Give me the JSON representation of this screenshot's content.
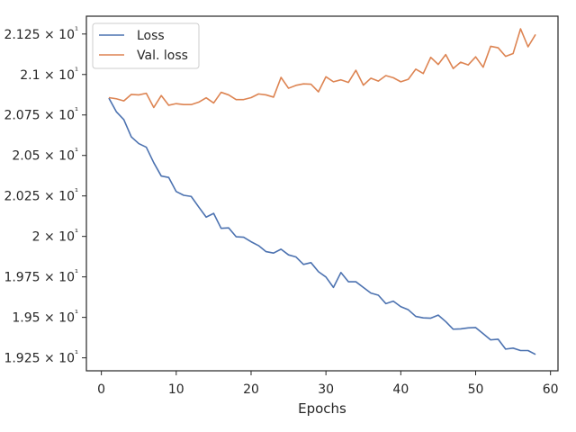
{
  "chart_data": {
    "type": "line",
    "title": "",
    "xlabel": "Epochs",
    "ylabel": "",
    "xlim": [
      -2.0,
      61.0
    ],
    "ylim": [
      19.17,
      21.36
    ],
    "xticks": [
      0,
      10,
      20,
      30,
      40,
      50,
      60
    ],
    "yticks": [
      19.25,
      19.5,
      19.75,
      20.0,
      20.25,
      20.5,
      20.75,
      21.0,
      21.25
    ],
    "ytick_labels": [
      "1.925 × 10¹",
      "1.95 × 10¹",
      "1.975 × 10¹",
      "2 × 10¹",
      "2.025 × 10¹",
      "2.05 × 10¹",
      "2.075 × 10¹",
      "2.1 × 10¹",
      "2.125 × 10¹"
    ],
    "legend_position": "top-left",
    "grid": false,
    "x": [
      1,
      2,
      3,
      4,
      5,
      6,
      7,
      8,
      9,
      10,
      11,
      12,
      13,
      14,
      15,
      16,
      17,
      18,
      19,
      20,
      21,
      22,
      23,
      24,
      25,
      26,
      27,
      28,
      29,
      30,
      31,
      32,
      33,
      34,
      35,
      36,
      37,
      38,
      39,
      40,
      41,
      42,
      43,
      44,
      45,
      46,
      47,
      48,
      49,
      50,
      51,
      52,
      53,
      54,
      55,
      56,
      57,
      58
    ],
    "series": [
      {
        "name": "Loss",
        "color": "#4c72b0",
        "values": [
          20.854,
          20.77,
          20.721,
          20.615,
          20.573,
          20.551,
          20.455,
          20.373,
          20.364,
          20.277,
          20.254,
          20.247,
          20.182,
          20.119,
          20.142,
          20.05,
          20.053,
          19.998,
          19.995,
          19.967,
          19.943,
          19.906,
          19.897,
          19.921,
          19.886,
          19.873,
          19.827,
          19.838,
          19.782,
          19.749,
          19.685,
          19.777,
          19.72,
          19.72,
          19.685,
          19.65,
          19.637,
          19.585,
          19.6,
          19.566,
          19.547,
          19.506,
          19.497,
          19.495,
          19.514,
          19.474,
          19.427,
          19.429,
          19.435,
          19.437,
          19.399,
          19.361,
          19.365,
          19.304,
          19.31,
          19.295,
          19.295,
          19.271
        ]
      },
      {
        "name": "Val. loss",
        "color": "#dd8452",
        "values": [
          20.857,
          20.85,
          20.837,
          20.877,
          20.874,
          20.884,
          20.796,
          20.87,
          20.81,
          20.82,
          20.814,
          20.814,
          20.829,
          20.856,
          20.824,
          20.89,
          20.874,
          20.845,
          20.845,
          20.857,
          20.88,
          20.874,
          20.86,
          20.982,
          20.915,
          20.933,
          20.942,
          20.94,
          20.893,
          20.986,
          20.955,
          20.967,
          20.951,
          21.026,
          20.934,
          20.977,
          20.959,
          20.993,
          20.98,
          20.955,
          20.97,
          21.033,
          21.006,
          21.106,
          21.062,
          21.123,
          21.037,
          21.076,
          21.059,
          21.109,
          21.045,
          21.174,
          21.165,
          21.112,
          21.129,
          21.282,
          21.171,
          21.247
        ]
      }
    ]
  }
}
